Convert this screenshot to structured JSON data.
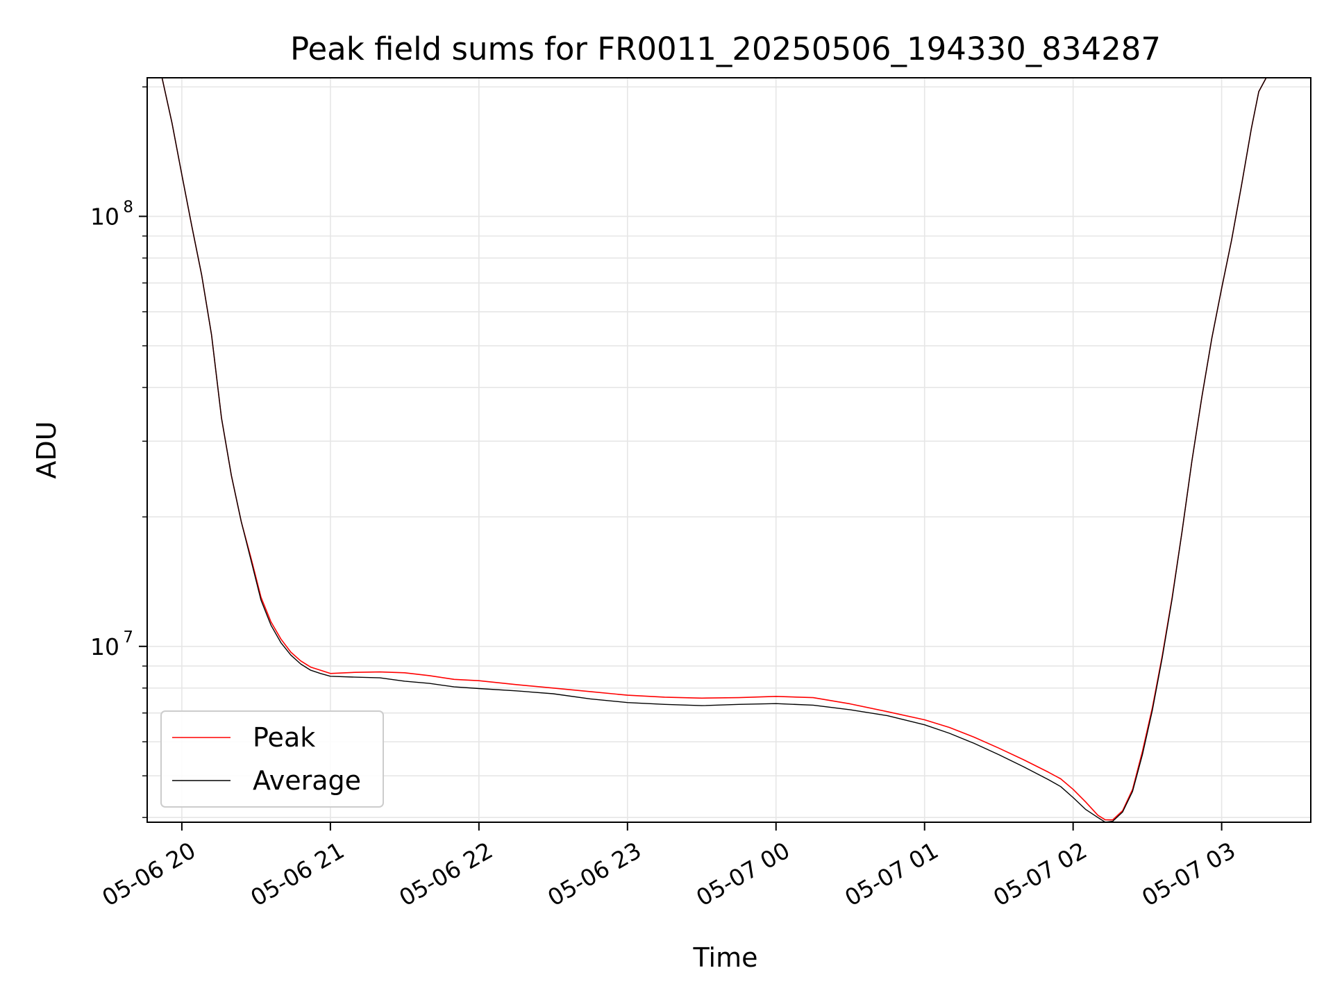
{
  "chart_data": {
    "type": "line",
    "title": "Peak field sums for FR0011_20250506_194330_834287",
    "xlabel": "Time",
    "ylabel": "ADU",
    "x_axis": {
      "kind": "datetime",
      "range": [
        "2025-05-06T19:46:00",
        "2025-05-07T03:36:00"
      ],
      "ticks": [
        {
          "value": "2025-05-06T20:00:00",
          "label": "05-06 20"
        },
        {
          "value": "2025-05-06T21:00:00",
          "label": "05-06 21"
        },
        {
          "value": "2025-05-06T22:00:00",
          "label": "05-06 22"
        },
        {
          "value": "2025-05-06T23:00:00",
          "label": "05-06 23"
        },
        {
          "value": "2025-05-07T00:00:00",
          "label": "05-07 00"
        },
        {
          "value": "2025-05-07T01:00:00",
          "label": "05-07 01"
        },
        {
          "value": "2025-05-07T02:00:00",
          "label": "05-07 02"
        },
        {
          "value": "2025-05-07T03:00:00",
          "label": "05-07 03"
        }
      ]
    },
    "y_axis": {
      "scale": "log",
      "range": [
        3900000,
        210000000
      ],
      "major_ticks": [
        {
          "value": 10000000,
          "base": "10",
          "exp": "7"
        },
        {
          "value": 100000000,
          "base": "10",
          "exp": "8"
        }
      ]
    },
    "grid": true,
    "legend": {
      "placement": "lower-left"
    },
    "series": [
      {
        "name": "Peak",
        "color": "#ff0000",
        "x": [
          "2025-05-06T19:49:00",
          "2025-05-06T19:52:00",
          "2025-05-06T19:56:00",
          "2025-05-06T20:00:00",
          "2025-05-06T20:04:00",
          "2025-05-06T20:08:00",
          "2025-05-06T20:12:00",
          "2025-05-06T20:16:00",
          "2025-05-06T20:20:00",
          "2025-05-06T20:24:00",
          "2025-05-06T20:28:00",
          "2025-05-06T20:32:00",
          "2025-05-06T20:36:00",
          "2025-05-06T20:40:00",
          "2025-05-06T20:44:00",
          "2025-05-06T20:48:00",
          "2025-05-06T20:52:00",
          "2025-05-06T20:56:00",
          "2025-05-06T21:00:00",
          "2025-05-06T21:10:00",
          "2025-05-06T21:20:00",
          "2025-05-06T21:30:00",
          "2025-05-06T21:40:00",
          "2025-05-06T21:50:00",
          "2025-05-06T22:00:00",
          "2025-05-06T22:15:00",
          "2025-05-06T22:30:00",
          "2025-05-06T22:45:00",
          "2025-05-06T23:00:00",
          "2025-05-06T23:15:00",
          "2025-05-06T23:30:00",
          "2025-05-06T23:45:00",
          "2025-05-07T00:00:00",
          "2025-05-07T00:15:00",
          "2025-05-07T00:30:00",
          "2025-05-07T00:45:00",
          "2025-05-07T01:00:00",
          "2025-05-07T01:10:00",
          "2025-05-07T01:20:00",
          "2025-05-07T01:30:00",
          "2025-05-07T01:40:00",
          "2025-05-07T01:50:00",
          "2025-05-07T01:55:00",
          "2025-05-07T02:00:00",
          "2025-05-07T02:05:00",
          "2025-05-07T02:10:00",
          "2025-05-07T02:13:00",
          "2025-05-07T02:16:00",
          "2025-05-07T02:20:00",
          "2025-05-07T02:24:00",
          "2025-05-07T02:28:00",
          "2025-05-07T02:32:00",
          "2025-05-07T02:36:00",
          "2025-05-07T02:40:00",
          "2025-05-07T02:44:00",
          "2025-05-07T02:48:00",
          "2025-05-07T02:52:00",
          "2025-05-07T02:56:00",
          "2025-05-07T03:00:00",
          "2025-05-07T03:04:00",
          "2025-05-07T03:08:00",
          "2025-05-07T03:12:00",
          "2025-05-07T03:15:00",
          "2025-05-07T03:18:00"
        ],
        "values": [
          210000000,
          210000000,
          165000000,
          125000000,
          95000000,
          73000000,
          53000000,
          34000000,
          25000000,
          19500000,
          16000000,
          13000000,
          11400000,
          10400000,
          9700000,
          9250000,
          8950000,
          8800000,
          8650000,
          8700000,
          8720000,
          8680000,
          8550000,
          8380000,
          8320000,
          8150000,
          8000000,
          7850000,
          7700000,
          7620000,
          7580000,
          7600000,
          7650000,
          7600000,
          7350000,
          7050000,
          6750000,
          6480000,
          6150000,
          5800000,
          5450000,
          5100000,
          4920000,
          4650000,
          4350000,
          4050000,
          3950000,
          3950000,
          4150000,
          4650000,
          5700000,
          7200000,
          9500000,
          13000000,
          18500000,
          27000000,
          38000000,
          52000000,
          68000000,
          88000000,
          118000000,
          160000000,
          195000000,
          210000000
        ]
      },
      {
        "name": "Average",
        "color": "#000000",
        "x": [
          "2025-05-06T19:49:00",
          "2025-05-06T19:52:00",
          "2025-05-06T19:56:00",
          "2025-05-06T20:00:00",
          "2025-05-06T20:04:00",
          "2025-05-06T20:08:00",
          "2025-05-06T20:12:00",
          "2025-05-06T20:16:00",
          "2025-05-06T20:20:00",
          "2025-05-06T20:24:00",
          "2025-05-06T20:28:00",
          "2025-05-06T20:32:00",
          "2025-05-06T20:36:00",
          "2025-05-06T20:40:00",
          "2025-05-06T20:44:00",
          "2025-05-06T20:48:00",
          "2025-05-06T20:52:00",
          "2025-05-06T20:56:00",
          "2025-05-06T21:00:00",
          "2025-05-06T21:10:00",
          "2025-05-06T21:20:00",
          "2025-05-06T21:30:00",
          "2025-05-06T21:40:00",
          "2025-05-06T21:50:00",
          "2025-05-06T22:00:00",
          "2025-05-06T22:15:00",
          "2025-05-06T22:30:00",
          "2025-05-06T22:45:00",
          "2025-05-06T23:00:00",
          "2025-05-06T23:15:00",
          "2025-05-06T23:30:00",
          "2025-05-06T23:45:00",
          "2025-05-07T00:00:00",
          "2025-05-07T00:15:00",
          "2025-05-07T00:30:00",
          "2025-05-07T00:45:00",
          "2025-05-07T01:00:00",
          "2025-05-07T01:10:00",
          "2025-05-07T01:20:00",
          "2025-05-07T01:30:00",
          "2025-05-07T01:40:00",
          "2025-05-07T01:50:00",
          "2025-05-07T01:55:00",
          "2025-05-07T02:00:00",
          "2025-05-07T02:05:00",
          "2025-05-07T02:10:00",
          "2025-05-07T02:13:00",
          "2025-05-07T02:16:00",
          "2025-05-07T02:20:00",
          "2025-05-07T02:24:00",
          "2025-05-07T02:28:00",
          "2025-05-07T02:32:00",
          "2025-05-07T02:36:00",
          "2025-05-07T02:40:00",
          "2025-05-07T02:44:00",
          "2025-05-07T02:48:00",
          "2025-05-07T02:52:00",
          "2025-05-07T02:56:00",
          "2025-05-07T03:00:00",
          "2025-05-07T03:04:00",
          "2025-05-07T03:08:00",
          "2025-05-07T03:12:00",
          "2025-05-07T03:15:00",
          "2025-05-07T03:18:00"
        ],
        "values": [
          210000000,
          210000000,
          165000000,
          125000000,
          95000000,
          73000000,
          53000000,
          34000000,
          25000000,
          19500000,
          15800000,
          12800000,
          11200000,
          10200000,
          9550000,
          9100000,
          8800000,
          8650000,
          8520000,
          8480000,
          8450000,
          8300000,
          8200000,
          8050000,
          7980000,
          7880000,
          7760000,
          7550000,
          7400000,
          7330000,
          7280000,
          7330000,
          7360000,
          7300000,
          7120000,
          6900000,
          6570000,
          6280000,
          5950000,
          5600000,
          5250000,
          4900000,
          4720000,
          4450000,
          4180000,
          4000000,
          3900000,
          3920000,
          4120000,
          4600000,
          5600000,
          7100000,
          9400000,
          12900000,
          18500000,
          27000000,
          38000000,
          52000000,
          68000000,
          88000000,
          118000000,
          160000000,
          195000000,
          210000000
        ]
      }
    ]
  }
}
